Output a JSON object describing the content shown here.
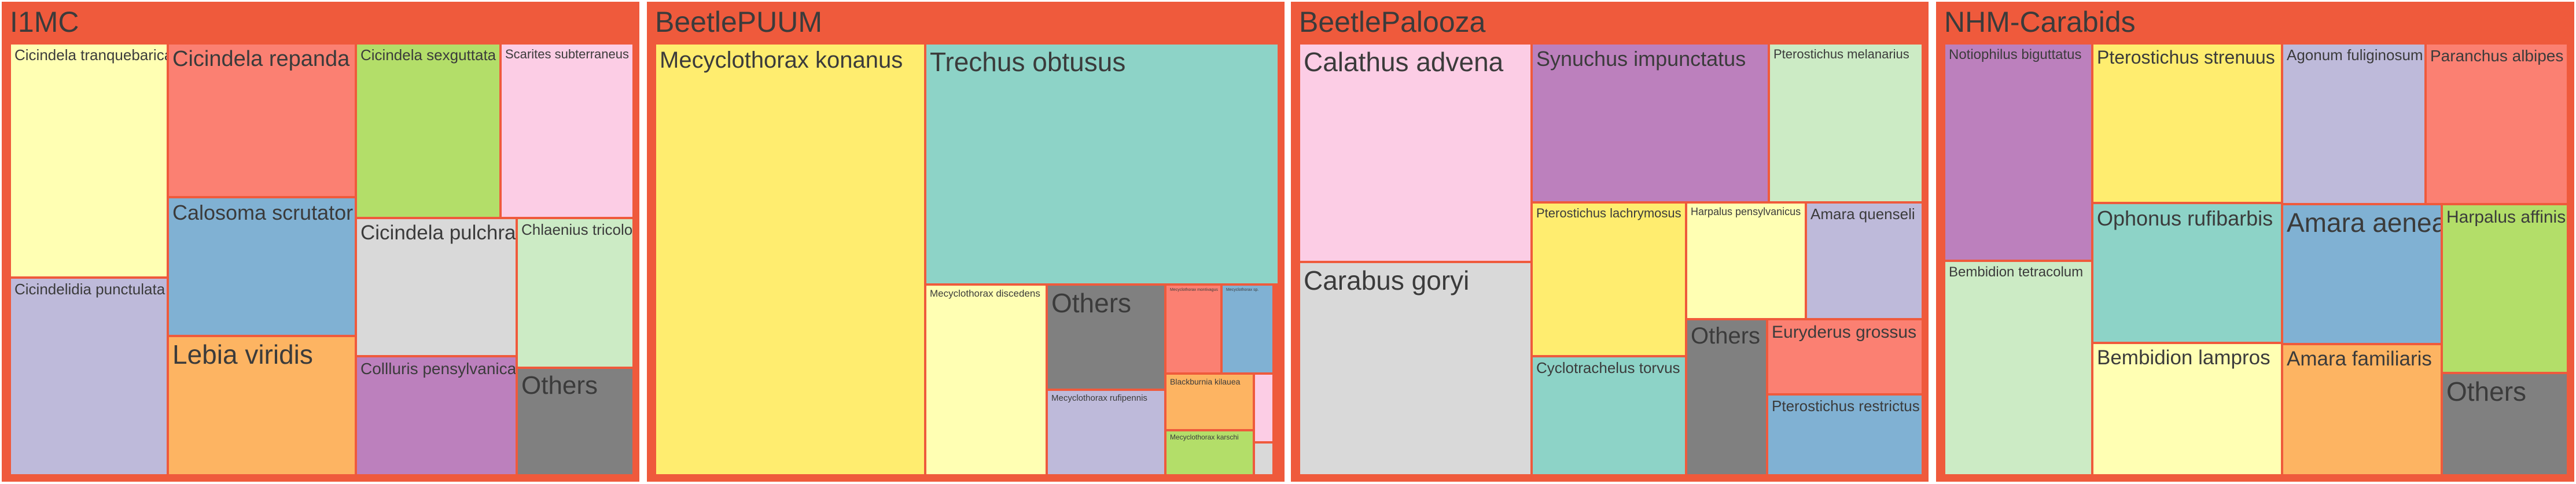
{
  "chart_data": {
    "type": "treemap",
    "groups": [
      {
        "name": "I1MC",
        "items": [
          {
            "label": "Cicindela tranquebarica",
            "color": "#ffffb3"
          },
          {
            "label": "Cicindelidia punctulata",
            "color": "#bebada"
          },
          {
            "label": "Cicindela repanda",
            "color": "#fb8072"
          },
          {
            "label": "Calosoma scrutator",
            "color": "#80b1d3"
          },
          {
            "label": "Lebia viridis",
            "color": "#fdb462"
          },
          {
            "label": "Cicindela sexguttata",
            "color": "#b3de69"
          },
          {
            "label": "Scarites subterraneus",
            "color": "#fccde5"
          },
          {
            "label": "Cicindela pulchra",
            "color": "#d9d9d9"
          },
          {
            "label": "Chlaenius tricolor",
            "color": "#ccebc5"
          },
          {
            "label": "Collluris pensylvanica",
            "color": "#bc80bd"
          },
          {
            "label": "Others",
            "color": "#808080"
          }
        ]
      },
      {
        "name": "BeetlePUUM",
        "items": [
          {
            "label": "Mecyclothorax konanus",
            "color": "#ffed6f"
          },
          {
            "label": "Trechus obtusus",
            "color": "#8dd3c7"
          },
          {
            "label": "Mecyclothorax discedens",
            "color": "#ffffb3"
          },
          {
            "label": "Others",
            "color": "#808080"
          },
          {
            "label": "Mecyclothorax rufipennis",
            "color": "#bebada"
          },
          {
            "label": "Mecyclothorax montivagus",
            "color": "#fb8072"
          },
          {
            "label": "Mecyclothorax sp.",
            "color": "#80b1d3"
          },
          {
            "label": "Blackburnia kilauea",
            "color": "#fdb462"
          },
          {
            "label": "Mecyclothorax karschi",
            "color": "#b3de69"
          },
          {
            "label": "",
            "color": "#fccde5"
          },
          {
            "label": "",
            "color": "#d9d9d9"
          }
        ]
      },
      {
        "name": "BeetlePalooza",
        "items": [
          {
            "label": "Calathus advena",
            "color": "#fccde5"
          },
          {
            "label": "Carabus goryi",
            "color": "#d9d9d9"
          },
          {
            "label": "Synuchus impunctatus",
            "color": "#bc80bd"
          },
          {
            "label": "Pterostichus melanarius",
            "color": "#ccebc5"
          },
          {
            "label": "Pterostichus lachrymosus",
            "color": "#ffed6f"
          },
          {
            "label": "Cyclotrachelus torvus",
            "color": "#8dd3c7"
          },
          {
            "label": "Harpalus pensylvanicus",
            "color": "#ffffb3"
          },
          {
            "label": "Amara quenseli",
            "color": "#bebada"
          },
          {
            "label": "Others",
            "color": "#808080"
          },
          {
            "label": "Euryderus grossus",
            "color": "#fb8072"
          },
          {
            "label": "Pterostichus restrictus",
            "color": "#80b1d3"
          }
        ]
      },
      {
        "name": "NHM-Carabids",
        "items": [
          {
            "label": "Notiophilus biguttatus",
            "color": "#bc80bd"
          },
          {
            "label": "Bembidion tetracolum",
            "color": "#ccebc5"
          },
          {
            "label": "Pterostichus strenuus",
            "color": "#ffed6f"
          },
          {
            "label": "Ophonus rufibarbis",
            "color": "#8dd3c7"
          },
          {
            "label": "Bembidion lampros",
            "color": "#ffffb3"
          },
          {
            "label": "Agonum fuliginosum",
            "color": "#bebada"
          },
          {
            "label": "Amara aenea",
            "color": "#80b1d3"
          },
          {
            "label": "Amara familiaris",
            "color": "#fdb462"
          },
          {
            "label": "Paranchus albipes",
            "color": "#fb8072"
          },
          {
            "label": "Harpalus affinis",
            "color": "#b3de69"
          },
          {
            "label": "Others",
            "color": "#808080"
          }
        ]
      }
    ]
  }
}
